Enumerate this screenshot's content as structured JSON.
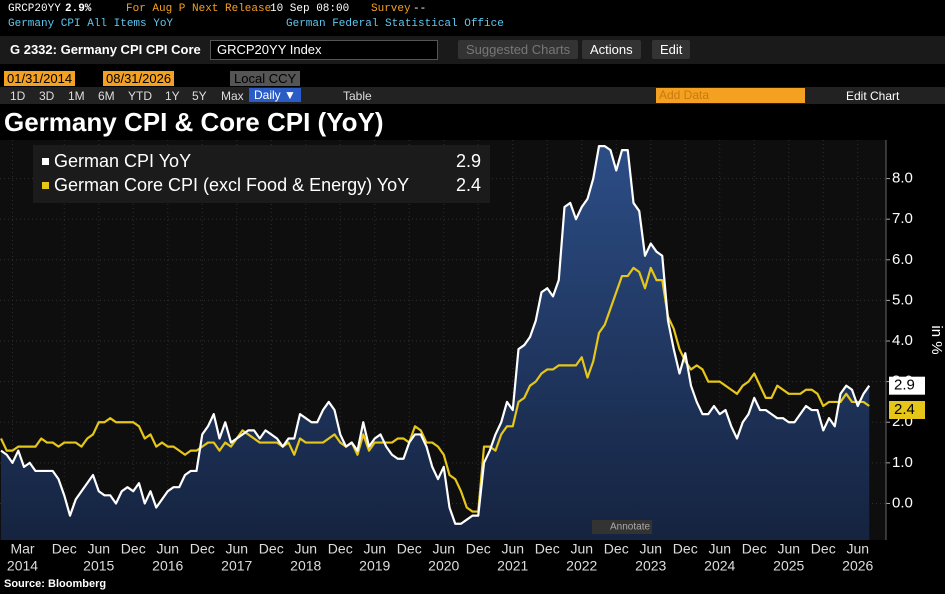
{
  "header": {
    "ticker": "GRCP20YY",
    "value": "2.9%",
    "period": "For Aug P",
    "release_label": "Next Release",
    "release": "10 Sep 08:00",
    "survey_label": "Survey",
    "survey": "--",
    "name": "Germany CPI All Items YoY",
    "source": "German Federal Statistical Office"
  },
  "toolbar": {
    "title": "G 2332: Germany CPI CPI Core",
    "security": "GRCP20YY Index",
    "buttons": [
      "Suggested Charts",
      "Actions",
      "Edit"
    ],
    "start": "01/31/2014",
    "end": "08/31/2026",
    "currency": "Local CCY",
    "ranges": [
      "1D",
      "3D",
      "1M",
      "6M",
      "YTD",
      "1Y",
      "5Y",
      "Max"
    ],
    "frequency": "Daily ▼",
    "table": "Table",
    "add_data": "Add Data",
    "edit_chart": "Edit Chart"
  },
  "chart_data": {
    "type": "line",
    "title": "Germany CPI & Core CPI (YoY)",
    "ylabel": "in %",
    "annotate": "Annotate",
    "source": "Source: Bloomberg",
    "grid": true,
    "categories": [
      "2014-01",
      "2014-02",
      "2014-03",
      "2014-04",
      "2014-05",
      "2014-06",
      "2014-07",
      "2014-08",
      "2014-09",
      "2014-10",
      "2014-11",
      "2014-12",
      "2015-01",
      "2015-02",
      "2015-03",
      "2015-04",
      "2015-05",
      "2015-06",
      "2015-07",
      "2015-08",
      "2015-09",
      "2015-10",
      "2015-11",
      "2015-12",
      "2016-01",
      "2016-02",
      "2016-03",
      "2016-04",
      "2016-05",
      "2016-06",
      "2016-07",
      "2016-08",
      "2016-09",
      "2016-10",
      "2016-11",
      "2016-12",
      "2017-01",
      "2017-02",
      "2017-03",
      "2017-04",
      "2017-05",
      "2017-06",
      "2017-07",
      "2017-08",
      "2017-09",
      "2017-10",
      "2017-11",
      "2017-12",
      "2018-01",
      "2018-02",
      "2018-03",
      "2018-04",
      "2018-05",
      "2018-06",
      "2018-07",
      "2018-08",
      "2018-09",
      "2018-10",
      "2018-11",
      "2018-12",
      "2019-01",
      "2019-02",
      "2019-03",
      "2019-04",
      "2019-05",
      "2019-06",
      "2019-07",
      "2019-08",
      "2019-09",
      "2019-10",
      "2019-11",
      "2019-12",
      "2020-01",
      "2020-02",
      "2020-03",
      "2020-04",
      "2020-05",
      "2020-06",
      "2020-07",
      "2020-08",
      "2020-09",
      "2020-10",
      "2020-11",
      "2020-12",
      "2021-01",
      "2021-02",
      "2021-03",
      "2021-04",
      "2021-05",
      "2021-06",
      "2021-07",
      "2021-08",
      "2021-09",
      "2021-10",
      "2021-11",
      "2021-12",
      "2022-01",
      "2022-02",
      "2022-03",
      "2022-04",
      "2022-05",
      "2022-06",
      "2022-07",
      "2022-08",
      "2022-09",
      "2022-10",
      "2022-11",
      "2022-12",
      "2023-01",
      "2023-02",
      "2023-03",
      "2023-04",
      "2023-05",
      "2023-06",
      "2023-07",
      "2023-08",
      "2023-09",
      "2023-10",
      "2023-11",
      "2023-12",
      "2024-01",
      "2024-02",
      "2024-03",
      "2024-04",
      "2024-05",
      "2024-06",
      "2024-07",
      "2024-08",
      "2024-09",
      "2024-10",
      "2024-11",
      "2024-12",
      "2025-01",
      "2025-02",
      "2025-03",
      "2025-04",
      "2025-05",
      "2025-06",
      "2025-07",
      "2025-08",
      "2025-09",
      "2025-10",
      "2025-11",
      "2025-12",
      "2026-01",
      "2026-02",
      "2026-03",
      "2026-04",
      "2026-05",
      "2026-06",
      "2026-07",
      "2026-08"
    ],
    "series": [
      {
        "name": "German CPI YoY",
        "color": "#ffffff",
        "area": true,
        "last": 2.9,
        "values": [
          1.3,
          1.2,
          1.0,
          1.3,
          0.9,
          1.0,
          0.8,
          0.8,
          0.8,
          0.8,
          0.6,
          0.2,
          -0.3,
          0.1,
          0.3,
          0.5,
          0.7,
          0.3,
          0.2,
          0.2,
          0.0,
          0.3,
          0.4,
          0.3,
          0.5,
          0.0,
          0.3,
          -0.1,
          0.1,
          0.3,
          0.4,
          0.4,
          0.7,
          0.8,
          0.8,
          1.7,
          1.9,
          2.2,
          1.6,
          2.0,
          1.5,
          1.6,
          1.7,
          1.8,
          1.8,
          1.6,
          1.8,
          1.7,
          1.6,
          1.4,
          1.6,
          1.6,
          2.2,
          2.1,
          2.0,
          2.0,
          2.3,
          2.5,
          2.3,
          1.7,
          1.4,
          1.5,
          1.3,
          2.0,
          1.4,
          1.6,
          1.7,
          1.4,
          1.2,
          1.1,
          1.1,
          1.5,
          1.7,
          1.7,
          1.4,
          0.9,
          0.6,
          0.9,
          -0.1,
          -0.5,
          -0.5,
          -0.4,
          -0.3,
          -0.3,
          1.0,
          1.3,
          1.7,
          2.0,
          2.5,
          2.3,
          3.8,
          3.9,
          4.1,
          4.5,
          5.2,
          5.3,
          5.1,
          5.5,
          7.3,
          7.4,
          7.0,
          7.3,
          7.5,
          8.0,
          8.8,
          8.8,
          8.7,
          8.2,
          8.7,
          8.7,
          7.4,
          7.2,
          6.1,
          6.4,
          6.2,
          6.1,
          4.5,
          3.8,
          3.2,
          3.7,
          2.9,
          2.5,
          2.2,
          2.2,
          2.4,
          2.2,
          2.3,
          1.9,
          1.6,
          2.0,
          2.2,
          2.6,
          2.3,
          2.3,
          2.2,
          2.1,
          2.1,
          2.0,
          2.0,
          2.2,
          2.4,
          2.3,
          2.3,
          1.8,
          2.1,
          1.9,
          2.7,
          2.9,
          2.8,
          2.4,
          2.7,
          2.9
        ]
      },
      {
        "name": "German Core CPI (excl Food & Energy) YoY",
        "color": "#e6c619",
        "last": 2.4,
        "values": [
          1.6,
          1.3,
          1.3,
          1.4,
          1.4,
          1.4,
          1.4,
          1.6,
          1.5,
          1.5,
          1.4,
          1.5,
          1.5,
          1.5,
          1.4,
          1.6,
          1.7,
          2.0,
          2.0,
          2.1,
          2.0,
          2.0,
          2.0,
          2.0,
          1.9,
          1.6,
          1.7,
          1.4,
          1.5,
          1.4,
          1.4,
          1.3,
          1.2,
          1.3,
          1.3,
          1.4,
          1.5,
          1.5,
          1.3,
          1.5,
          1.4,
          1.6,
          1.8,
          1.7,
          1.6,
          1.5,
          1.5,
          1.5,
          1.5,
          1.4,
          1.5,
          1.2,
          1.6,
          1.5,
          1.5,
          1.5,
          1.5,
          1.6,
          1.7,
          1.5,
          1.4,
          1.5,
          1.2,
          1.7,
          1.3,
          1.5,
          1.5,
          1.5,
          1.5,
          1.6,
          1.6,
          1.5,
          1.9,
          1.8,
          1.5,
          1.5,
          1.4,
          1.2,
          0.7,
          0.6,
          0.3,
          -0.1,
          -0.2,
          -0.2,
          1.4,
          1.4,
          1.3,
          1.7,
          1.9,
          1.9,
          2.5,
          2.6,
          2.9,
          3.0,
          3.2,
          3.3,
          3.3,
          3.4,
          3.4,
          3.4,
          3.4,
          3.6,
          3.1,
          3.5,
          4.2,
          4.4,
          4.8,
          5.2,
          5.6,
          5.6,
          5.8,
          5.7,
          5.3,
          5.8,
          5.5,
          5.5,
          4.6,
          4.3,
          3.8,
          3.5,
          3.3,
          3.4,
          3.3,
          3.0,
          3.0,
          3.0,
          2.9,
          2.8,
          2.7,
          2.9,
          3.0,
          3.2,
          2.9,
          2.6,
          2.6,
          2.9,
          2.8,
          2.7,
          2.7,
          2.7,
          2.8,
          2.8,
          2.7,
          2.4,
          2.5,
          2.5,
          2.5,
          2.7,
          2.5,
          2.5,
          2.5,
          2.4
        ]
      }
    ],
    "ylim": [
      -0.9,
      8.95
    ],
    "yticks": [
      {
        "value": 0,
        "label": "0.0"
      },
      {
        "value": 1,
        "label": "1.0"
      },
      {
        "value": 2,
        "label": "2.0"
      },
      {
        "value": 3,
        "label": "3.0"
      },
      {
        "value": 4,
        "label": "4.0"
      },
      {
        "value": 5,
        "label": "5.0"
      },
      {
        "value": 6,
        "label": "6.0"
      },
      {
        "value": 7,
        "label": "7.0"
      },
      {
        "value": 8,
        "label": "8.0"
      }
    ],
    "xticks": [
      {
        "value": "2014-03",
        "label": "Mar",
        "year": "2014"
      },
      {
        "value": "2014-12",
        "label": "Dec"
      },
      {
        "value": "2015-06",
        "label": "Jun",
        "year": "2015"
      },
      {
        "value": "2015-12",
        "label": "Dec"
      },
      {
        "value": "2016-06",
        "label": "Jun",
        "year": "2016"
      },
      {
        "value": "2016-12",
        "label": "Dec"
      },
      {
        "value": "2017-06",
        "label": "Jun",
        "year": "2017"
      },
      {
        "value": "2017-12",
        "label": "Dec"
      },
      {
        "value": "2018-06",
        "label": "Jun",
        "year": "2018"
      },
      {
        "value": "2018-12",
        "label": "Dec"
      },
      {
        "value": "2019-06",
        "label": "Jun",
        "year": "2019"
      },
      {
        "value": "2019-12",
        "label": "Dec"
      },
      {
        "value": "2020-06",
        "label": "Jun",
        "year": "2020"
      },
      {
        "value": "2020-12",
        "label": "Dec"
      },
      {
        "value": "2021-06",
        "label": "Jun",
        "year": "2021"
      },
      {
        "value": "2021-12",
        "label": "Dec"
      },
      {
        "value": "2022-06",
        "label": "Jun",
        "year": "2022"
      },
      {
        "value": "2022-12",
        "label": "Dec"
      },
      {
        "value": "2023-06",
        "label": "Jun",
        "year": "2023"
      },
      {
        "value": "2023-12",
        "label": "Dec"
      },
      {
        "value": "2024-06",
        "label": "Jun",
        "year": "2024"
      },
      {
        "value": "2024-12",
        "label": "Dec"
      },
      {
        "value": "2025-06",
        "label": "Jun",
        "year": "2025"
      },
      {
        "value": "2025-12",
        "label": "Dec"
      },
      {
        "value": "2026-06",
        "label": "Jun",
        "year": "2026"
      }
    ]
  }
}
